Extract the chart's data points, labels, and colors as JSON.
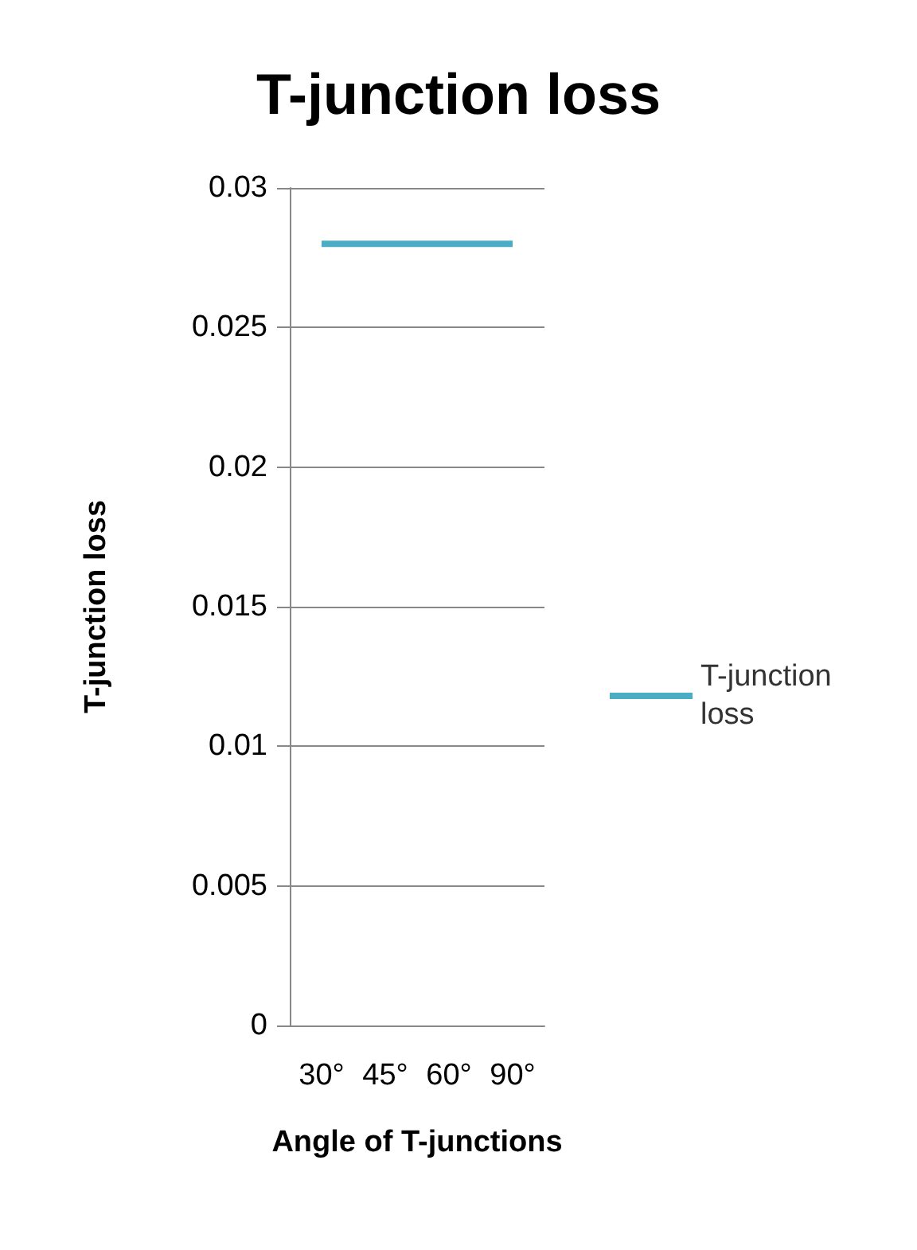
{
  "chart_data": {
    "type": "line",
    "title": "T-junction loss",
    "xlabel": "Angle of T-junctions",
    "ylabel": "T-junction loss",
    "categories": [
      "30°",
      "45°",
      "60°",
      "90°"
    ],
    "series": [
      {
        "name": "T-junction loss",
        "color": "#4bacc6",
        "values": [
          0.028,
          0.028,
          0.028,
          0.028
        ]
      }
    ],
    "ylim": [
      0,
      0.03
    ],
    "yticks": [
      0,
      0.005,
      0.01,
      0.015,
      0.02,
      0.025,
      0.03
    ],
    "grid": "y",
    "legend": "right",
    "marker": "none",
    "line_style": "solid"
  }
}
